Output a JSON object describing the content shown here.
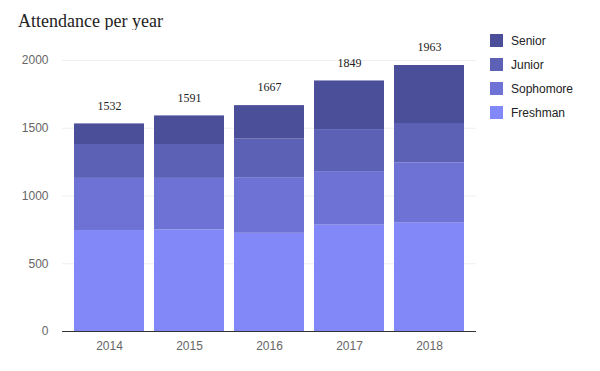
{
  "chart_data": {
    "type": "bar",
    "title": "Attendance per year",
    "categories": [
      "2014",
      "2015",
      "2016",
      "2017",
      "2018"
    ],
    "series": [
      {
        "name": "Freshman",
        "color": "#8388f8",
        "values": [
          745,
          750,
          725,
          785,
          800
        ]
      },
      {
        "name": "Sophomore",
        "color": "#6d72d4",
        "values": [
          385,
          380,
          410,
          395,
          445
        ]
      },
      {
        "name": "Junior",
        "color": "#5d61b6",
        "values": [
          250,
          250,
          285,
          310,
          290
        ]
      },
      {
        "name": "Senior",
        "color": "#4b4e98",
        "values": [
          152,
          211,
          247,
          359,
          428
        ]
      }
    ],
    "totals": [
      1532,
      1591,
      1667,
      1849,
      1963
    ],
    "ylim": [
      0,
      2000
    ],
    "yticks": [
      0,
      500,
      1000,
      1500,
      2000
    ],
    "grid": true,
    "stacked": true,
    "legend": "right"
  }
}
